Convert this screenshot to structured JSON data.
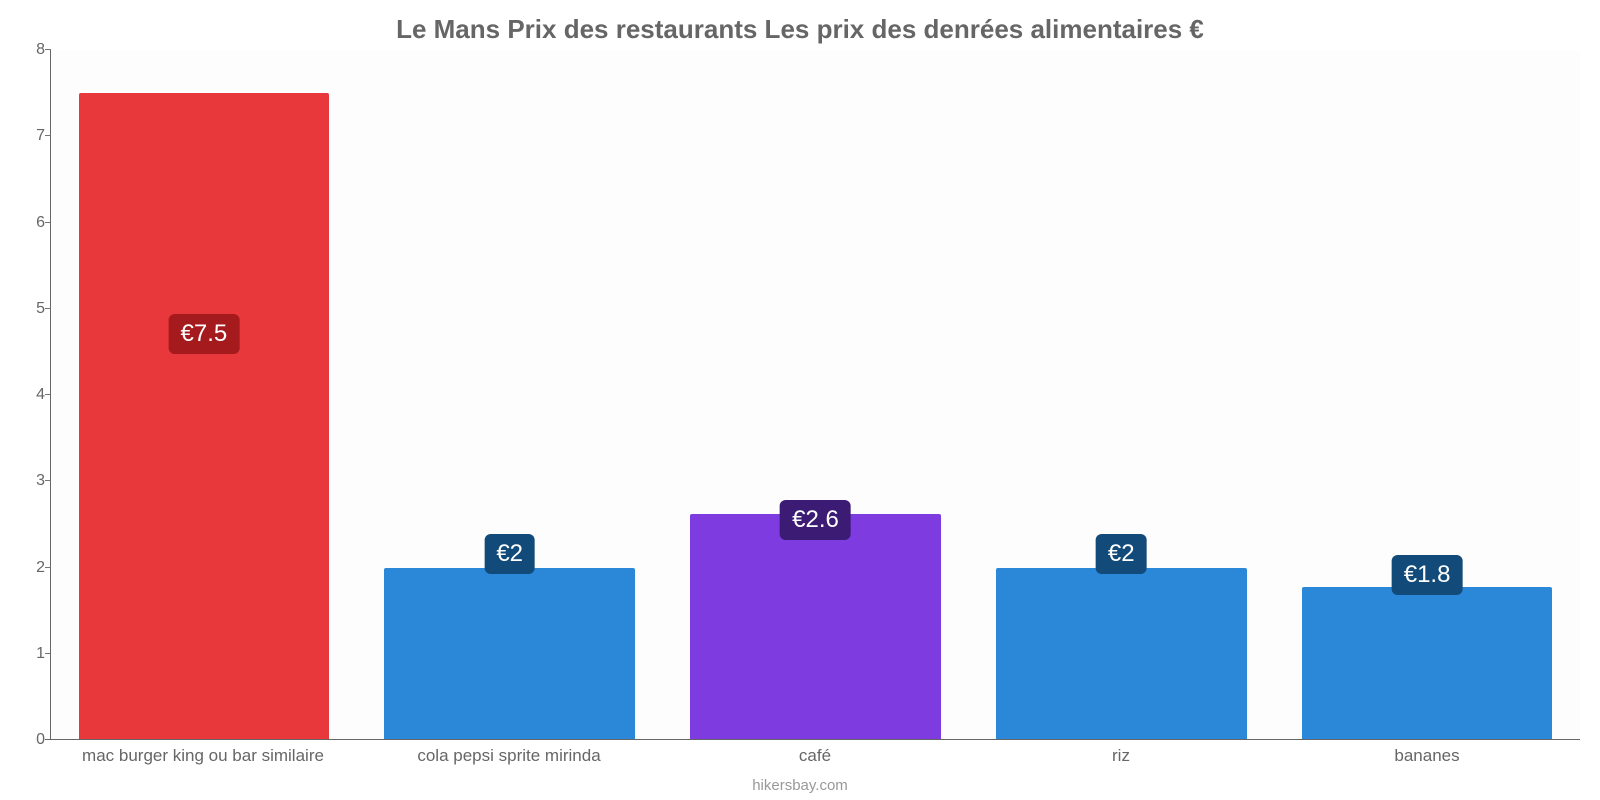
{
  "chart": {
    "type": "bar",
    "title": "Le Mans Prix des restaurants Les prix des denrées alimentaires €",
    "title_color": "#666666",
    "title_fontsize": 26,
    "background_color": "#fdfdfd",
    "page_background": "#ffffff",
    "axis_color": "#666666",
    "grid_color": "#666666",
    "xlabel_color": "#666666",
    "tick_color": "#666666",
    "tick_fontsize": 16,
    "xlabel_fontsize": 17,
    "badge_fontsize": 24,
    "badge_text_color": "#ffffff",
    "ylim": [
      0,
      8
    ],
    "ytick_step": 1,
    "bar_width": 0.82,
    "categories": [
      "mac burger king ou bar similaire",
      "cola pepsi sprite mirinda",
      "café",
      "riz",
      "bananes"
    ],
    "values": [
      7.5,
      2.0,
      2.62,
      2.0,
      1.77
    ],
    "value_labels": [
      "€7.5",
      "€2",
      "€2.6",
      "€2",
      "€1.8"
    ],
    "bar_colors": [
      "#e8383b",
      "#2b88d8",
      "#7d3be0",
      "#2b88d8",
      "#2b88d8"
    ],
    "badge_colors": [
      "#a41a1d",
      "#124b79",
      "#3b1b74",
      "#124b79",
      "#124b79"
    ],
    "label_offsets_pct": [
      56,
      24,
      29,
      24,
      21
    ],
    "source": "hikersbay.com",
    "source_color": "#999999"
  }
}
